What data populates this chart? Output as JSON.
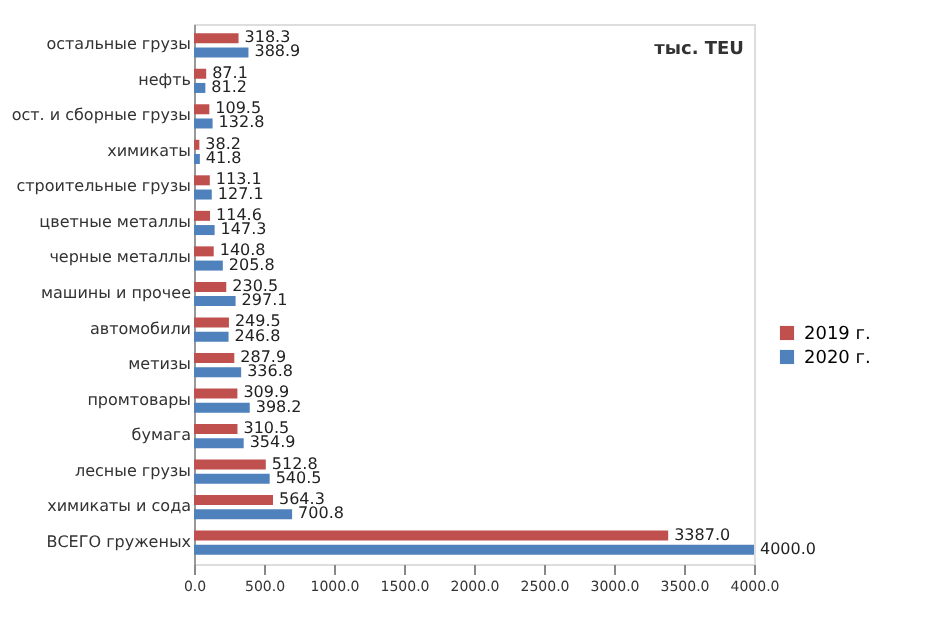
{
  "chart_data": {
    "type": "bar",
    "orientation": "horizontal",
    "categories": [
      "остальные грузы",
      "нефть",
      "ост. и сборные грузы",
      "химикаты",
      "строительные грузы",
      "цветные металлы",
      "черные металлы",
      "машины и прочее",
      "автомобили",
      "метизы",
      "промтовары",
      "бумага",
      "лесные грузы",
      "химикаты и сода",
      "ВСЕГО груженых"
    ],
    "series": [
      {
        "name": "2019 г.",
        "color": "#c0504d",
        "values": [
          318.3,
          87.1,
          109.5,
          38.2,
          113.1,
          114.6,
          140.8,
          230.5,
          249.5,
          287.9,
          309.9,
          310.5,
          512.8,
          564.3,
          3387.0
        ],
        "value_labels": [
          "318.3",
          "87.1",
          "109.5",
          "38.2",
          "113.1",
          "114.6",
          "140.8",
          "230.5",
          "249.5",
          "287.9",
          "309.9",
          "310.5",
          "512.8",
          "564.3",
          "3387.0"
        ]
      },
      {
        "name": "2020 г.",
        "color": "#4f81bd",
        "values": [
          388.9,
          81.2,
          132.8,
          41.8,
          127.1,
          147.3,
          205.8,
          297.1,
          246.8,
          336.8,
          398.2,
          354.9,
          540.5,
          700.8,
          4000.0
        ],
        "value_labels": [
          "388.9",
          "81.2",
          "132.8",
          "41.8",
          "127.1",
          "147.3",
          "205.8",
          "297.1",
          "246.8",
          "336.8",
          "398.2",
          "354.9",
          "540.5",
          "700.8",
          "4000.0"
        ]
      }
    ],
    "xlim": [
      0,
      4000
    ],
    "xticks": [
      {
        "value": 0,
        "label": "0.0"
      },
      {
        "value": 500,
        "label": "500.0"
      },
      {
        "value": 1000,
        "label": "1000.0"
      },
      {
        "value": 1500,
        "label": "1500.0"
      },
      {
        "value": 2000,
        "label": "2000.0"
      },
      {
        "value": 2500,
        "label": "2500.0"
      },
      {
        "value": 3000,
        "label": "3000.0"
      },
      {
        "value": 3500,
        "label": "3500.0"
      },
      {
        "value": 4000,
        "label": "4000.0"
      }
    ],
    "annotations": [
      "тыс. TEU"
    ],
    "legend": "right",
    "grid": false
  }
}
